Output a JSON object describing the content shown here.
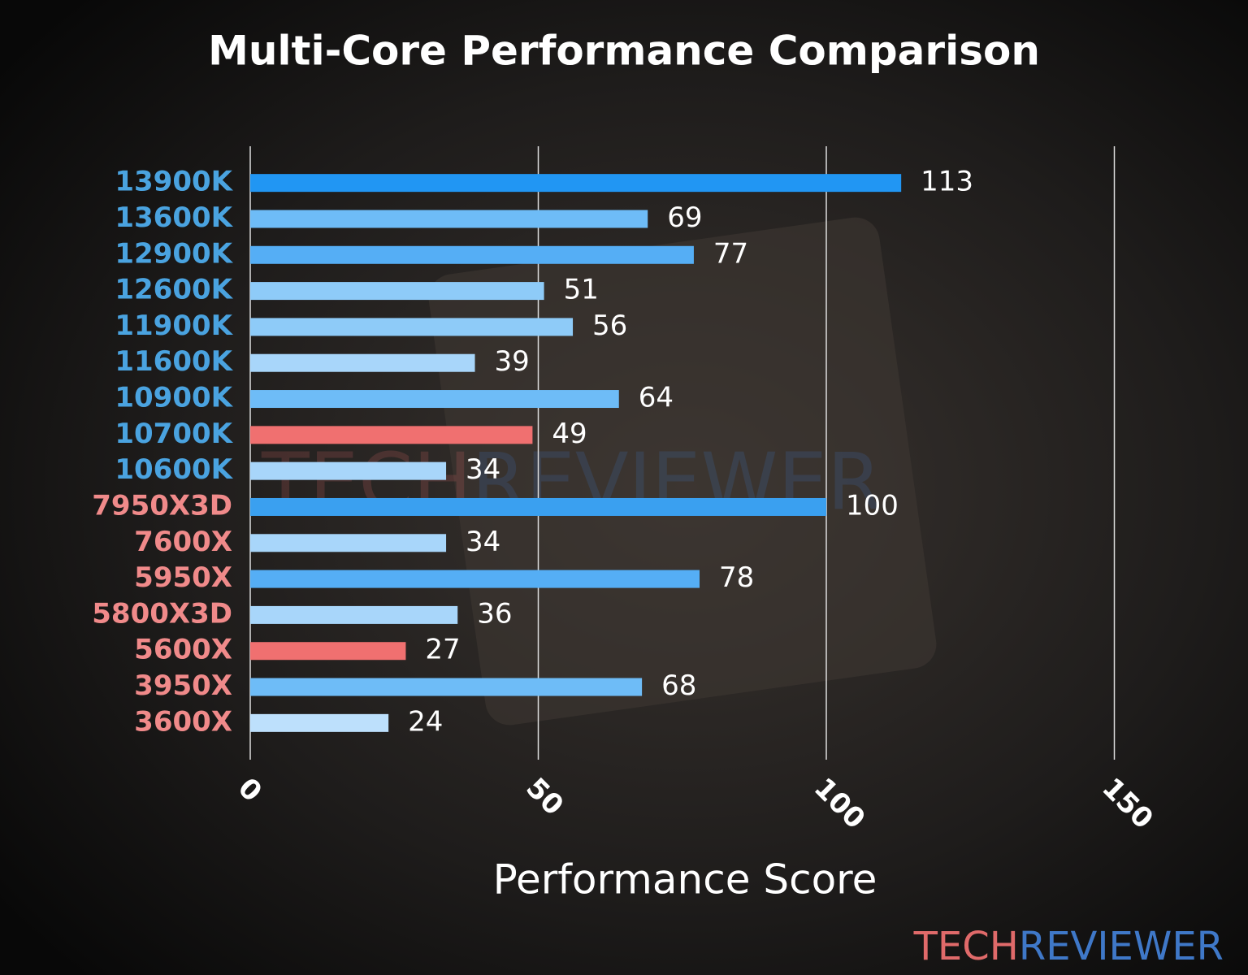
{
  "chart_data": {
    "type": "barh",
    "title": "Multi-Core Performance Comparison",
    "xlabel": "Performance Score",
    "categories": [
      "13900K",
      "13600K",
      "12900K",
      "12600K",
      "11900K",
      "11600K",
      "10900K",
      "10700K",
      "10600K",
      "7950X3D",
      "7600X",
      "5950X",
      "5800X3D",
      "5600X",
      "3950X",
      "3600X"
    ],
    "values": [
      113,
      69,
      77,
      51,
      56,
      39,
      64,
      49,
      34,
      100,
      34,
      78,
      36,
      27,
      68,
      24
    ],
    "colors": [
      "#2196f3",
      "#6ebcf7",
      "#55aef5",
      "#8ecbf8",
      "#8ecbf8",
      "#a8d6fa",
      "#6ebcf7",
      "#f07070",
      "#a8d6fa",
      "#3aa0f0",
      "#a8d6fa",
      "#55aef5",
      "#a8d6fa",
      "#f07070",
      "#6ebcf7",
      "#bde0fc"
    ],
    "label_colors": [
      "#4aa3e0",
      "#4aa3e0",
      "#4aa3e0",
      "#4aa3e0",
      "#4aa3e0",
      "#4aa3e0",
      "#4aa3e0",
      "#4aa3e0",
      "#4aa3e0",
      "#f08a8a",
      "#f08a8a",
      "#f08a8a",
      "#f08a8a",
      "#f08a8a",
      "#f08a8a",
      "#f08a8a"
    ],
    "xlim": [
      0,
      155
    ],
    "xticks": [
      0,
      50,
      100,
      150
    ],
    "grid": true,
    "watermark": [
      "TECH",
      "REVIEWER"
    ],
    "watermark_colors": [
      "#e06a6a",
      "#3f78c8"
    ]
  }
}
